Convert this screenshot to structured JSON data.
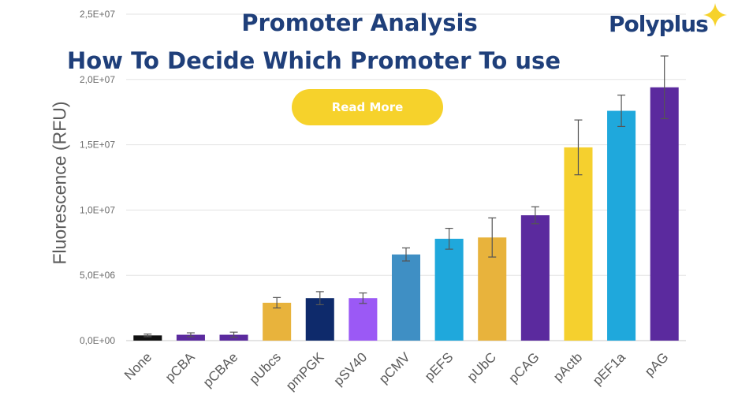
{
  "header": {
    "title_line1": "Promoter Analysis",
    "title_line2": "How To Decide Which Promoter To use",
    "read_more_label": "Read More",
    "logo_text": "Polyplus"
  },
  "colors": {
    "title": "#1f3f7a",
    "button": "#f6d22b",
    "logo_star": "#f6d22b"
  },
  "chart_data": {
    "type": "bar",
    "title": "",
    "xlabel": "",
    "ylabel": "Fluorescence (RFU)",
    "ylim": [
      0,
      25000000
    ],
    "yticks": [
      0,
      5000000,
      10000000,
      15000000,
      20000000,
      25000000
    ],
    "ytick_labels": [
      "0,0E+00",
      "5,0E+06",
      "1,0E+07",
      "1,5E+07",
      "2,0E+07",
      "2,5E+07"
    ],
    "grid": true,
    "categories": [
      "None",
      "pCBA",
      "pCBAe",
      "pUbcs",
      "pmPGK",
      "pSV40",
      "pCMV",
      "pEFS",
      "pUbC",
      "pCAG",
      "pActb",
      "pEF1a",
      "pAG"
    ],
    "values": [
      400000,
      450000,
      450000,
      2900000,
      3250000,
      3250000,
      6600000,
      7800000,
      7900000,
      9600000,
      14800000,
      17600000,
      19400000
    ],
    "errors": [
      100000,
      150000,
      200000,
      400000,
      500000,
      400000,
      500000,
      800000,
      1500000,
      650000,
      2100000,
      1200000,
      2400000
    ],
    "bar_colors": [
      "#111111",
      "#5b2a9e",
      "#5b2a9e",
      "#e8b33c",
      "#0e2a6b",
      "#9b59f5",
      "#3f8fc4",
      "#1fa8dc",
      "#e8b33c",
      "#5b2a9e",
      "#f5d02e",
      "#1fa8dc",
      "#5b2a9e"
    ]
  }
}
